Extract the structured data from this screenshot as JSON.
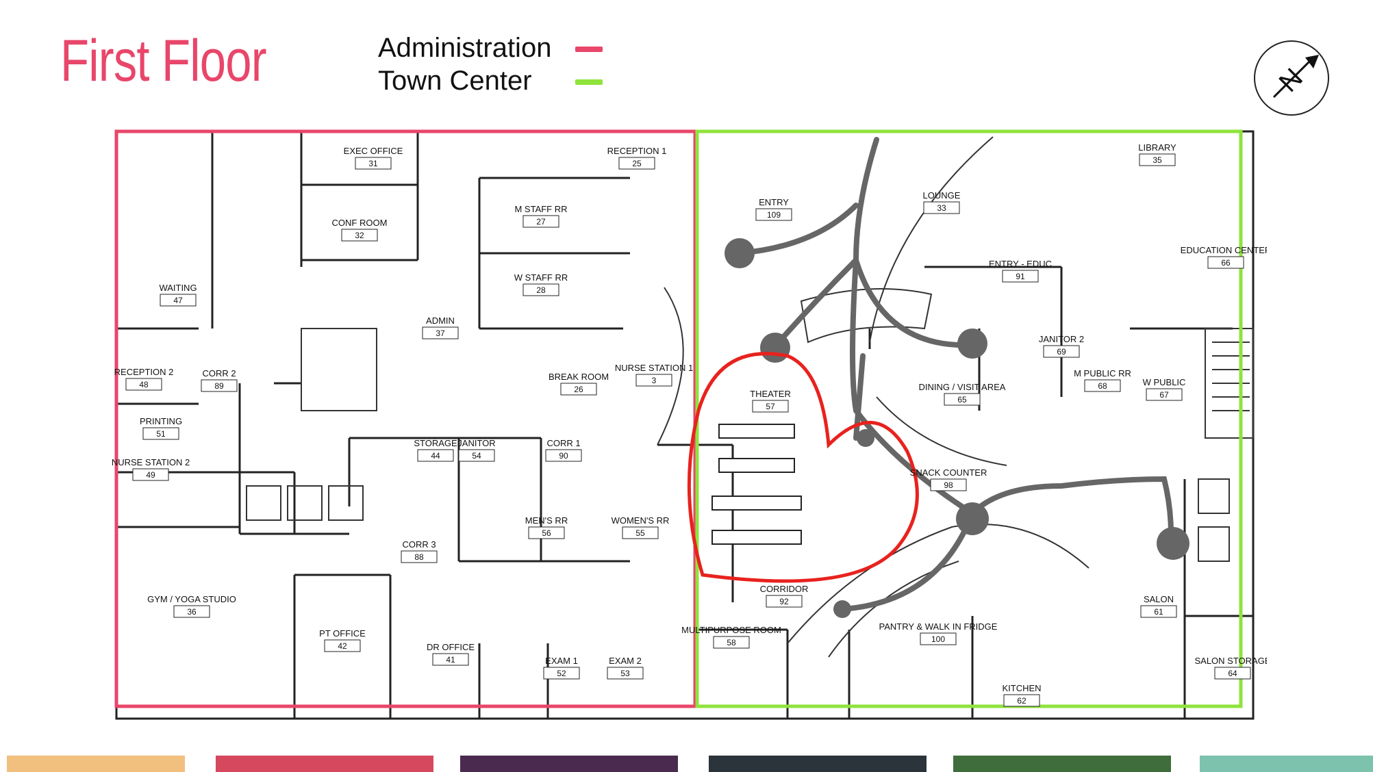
{
  "title": "First Floor",
  "legend": [
    {
      "label": "Administration",
      "color": "#e8466a"
    },
    {
      "label": "Town Center",
      "color": "#8fe33c"
    }
  ],
  "compass": {
    "letter": "N"
  },
  "rooms": {
    "exec_office": {
      "label": "EXEC OFFICE",
      "num": "31"
    },
    "reception1": {
      "label": "RECEPTION 1",
      "num": "25"
    },
    "conf_room": {
      "label": "CONF ROOM",
      "num": "32"
    },
    "m_staff_rr": {
      "label": "M STAFF RR",
      "num": "27"
    },
    "w_staff_rr": {
      "label": "W STAFF RR",
      "num": "28"
    },
    "waiting": {
      "label": "WAITING",
      "num": "47"
    },
    "admin": {
      "label": "ADMIN",
      "num": "37"
    },
    "break_room": {
      "label": "BREAK ROOM",
      "num": "26"
    },
    "nurse_station1": {
      "label": "NURSE STATION 1",
      "num": "3"
    },
    "reception2": {
      "label": "RECEPTION 2",
      "num": "48"
    },
    "corr2": {
      "label": "CORR 2",
      "num": "89"
    },
    "printing": {
      "label": "PRINTING",
      "num": "51"
    },
    "nurse_station2": {
      "label": "NURSE STATION 2",
      "num": "49"
    },
    "storage": {
      "label": "STORAGE",
      "num": "44"
    },
    "janitor": {
      "label": "JANITOR",
      "num": "54"
    },
    "corr1": {
      "label": "CORR 1",
      "num": "90"
    },
    "mens_rr": {
      "label": "MEN'S RR",
      "num": "56"
    },
    "womens_rr": {
      "label": "WOMEN'S RR",
      "num": "55"
    },
    "corr3": {
      "label": "CORR 3",
      "num": "88"
    },
    "gym": {
      "label": "GYM / YOGA STUDIO",
      "num": "36"
    },
    "pt_office": {
      "label": "PT OFFICE",
      "num": "42"
    },
    "dr_office": {
      "label": "DR OFFICE",
      "num": "41"
    },
    "exam1": {
      "label": "EXAM 1",
      "num": "52"
    },
    "exam2": {
      "label": "EXAM 2",
      "num": "53"
    },
    "entry": {
      "label": "ENTRY",
      "num": "109"
    },
    "lounge": {
      "label": "LOUNGE",
      "num": "33"
    },
    "library": {
      "label": "LIBRARY",
      "num": "35"
    },
    "entry_educ": {
      "label": "ENTRY - EDUC",
      "num": "91"
    },
    "education_center": {
      "label": "EDUCATION CENTER",
      "num": "66"
    },
    "janitor2": {
      "label": "JANITOR 2",
      "num": "69"
    },
    "theater": {
      "label": "THEATER",
      "num": "57"
    },
    "dining": {
      "label": "DINING / VISIT AREA",
      "num": "65"
    },
    "m_public_rr": {
      "label": "M PUBLIC RR",
      "num": "68"
    },
    "w_public": {
      "label": "W PUBLIC",
      "num": "67"
    },
    "snack_counter": {
      "label": "SNACK COUNTER",
      "num": "98"
    },
    "corridor": {
      "label": "CORRIDOR",
      "num": "92"
    },
    "multipurpose": {
      "label": "MULTIPURPOSE ROOM",
      "num": "58"
    },
    "pantry": {
      "label": "PANTRY & WALK IN FRIDGE",
      "num": "100"
    },
    "kitchen": {
      "label": "KITCHEN",
      "num": "62"
    },
    "salon": {
      "label": "SALON",
      "num": "61"
    },
    "salon_storage": {
      "label": "SALON STORAGE",
      "num": "64"
    }
  },
  "colors": {
    "administration": "#e8466a",
    "town_center": "#8fe33c",
    "heart": "#e8221e",
    "path": "#666666"
  },
  "footer_colors": [
    "#f2c07e",
    "#d6485d",
    "#4a2a4f",
    "#2a343a",
    "#3f6e3c",
    "#7dc2ad"
  ]
}
